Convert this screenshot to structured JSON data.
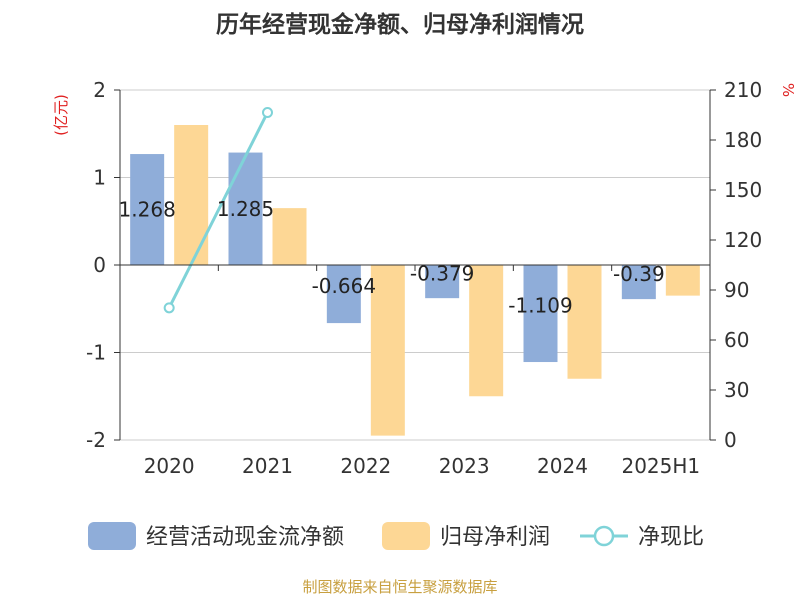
{
  "chart_data": {
    "type": "bar",
    "title": "历年经营现金净额、归母净利润情况",
    "y_left_unit": "(亿元)",
    "y_right_unit": "%",
    "categories": [
      "2020",
      "2021",
      "2022",
      "2023",
      "2024",
      "2025H1"
    ],
    "ylim_left": [
      -2,
      2
    ],
    "yticks_left": [
      "2",
      "1",
      "0",
      "-1",
      "-2"
    ],
    "ylim_right": [
      0,
      210
    ],
    "yticks_right": [
      "210",
      "180",
      "150",
      "120",
      "90",
      "60",
      "30",
      "0"
    ],
    "series": [
      {
        "name": "经营活动现金流净额",
        "type": "bar",
        "axis": "left",
        "color": "#8fadd9",
        "values": [
          1.268,
          1.285,
          -0.664,
          -0.379,
          -1.109,
          -0.39
        ],
        "labels": [
          "1.268",
          "1.285",
          "-0.664",
          "-0.379",
          "-1.109",
          "-0.39"
        ]
      },
      {
        "name": "归母净利润",
        "type": "bar",
        "axis": "left",
        "color": "#fdd795",
        "values": [
          1.6,
          0.65,
          -1.95,
          -1.5,
          -1.3,
          -0.35
        ]
      },
      {
        "name": "净现比",
        "type": "line",
        "axis": "right",
        "color": "#7fd3d8",
        "values": [
          79.3,
          196.5,
          null,
          null,
          null,
          null
        ]
      }
    ],
    "grid": true,
    "legend": "bottom"
  },
  "source": "制图数据来自恒生聚源数据库"
}
